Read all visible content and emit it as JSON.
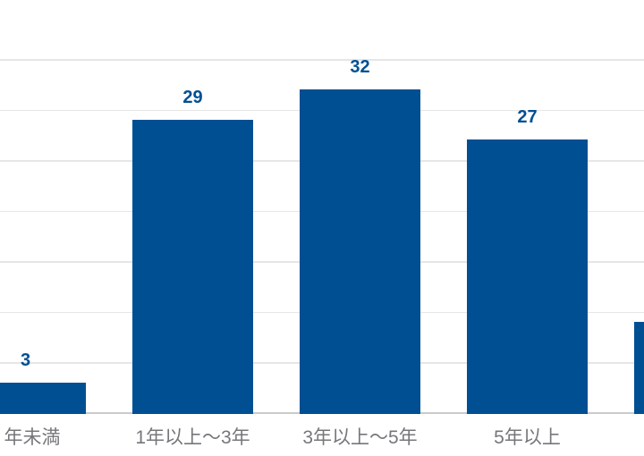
{
  "chart_data": {
    "type": "bar",
    "categories": [
      "年未満",
      "1年以上〜3年",
      "3年以上〜5年",
      "5年以上",
      ""
    ],
    "values": [
      3,
      29,
      32,
      27,
      9
    ],
    "title": "",
    "xlabel": "",
    "ylabel": "",
    "ylim": [
      0,
      41
    ],
    "gridline_step": 5,
    "grid": true,
    "legend": "none",
    "value_labels_shown": [
      true,
      true,
      true,
      true,
      false
    ]
  },
  "colors": {
    "bar": "#004F93",
    "value_label": "#004F93",
    "category_label": "#76777A",
    "gridline": "#E6E6E6",
    "axis_line": "#C8CACC",
    "background": "#FFFFFF"
  }
}
